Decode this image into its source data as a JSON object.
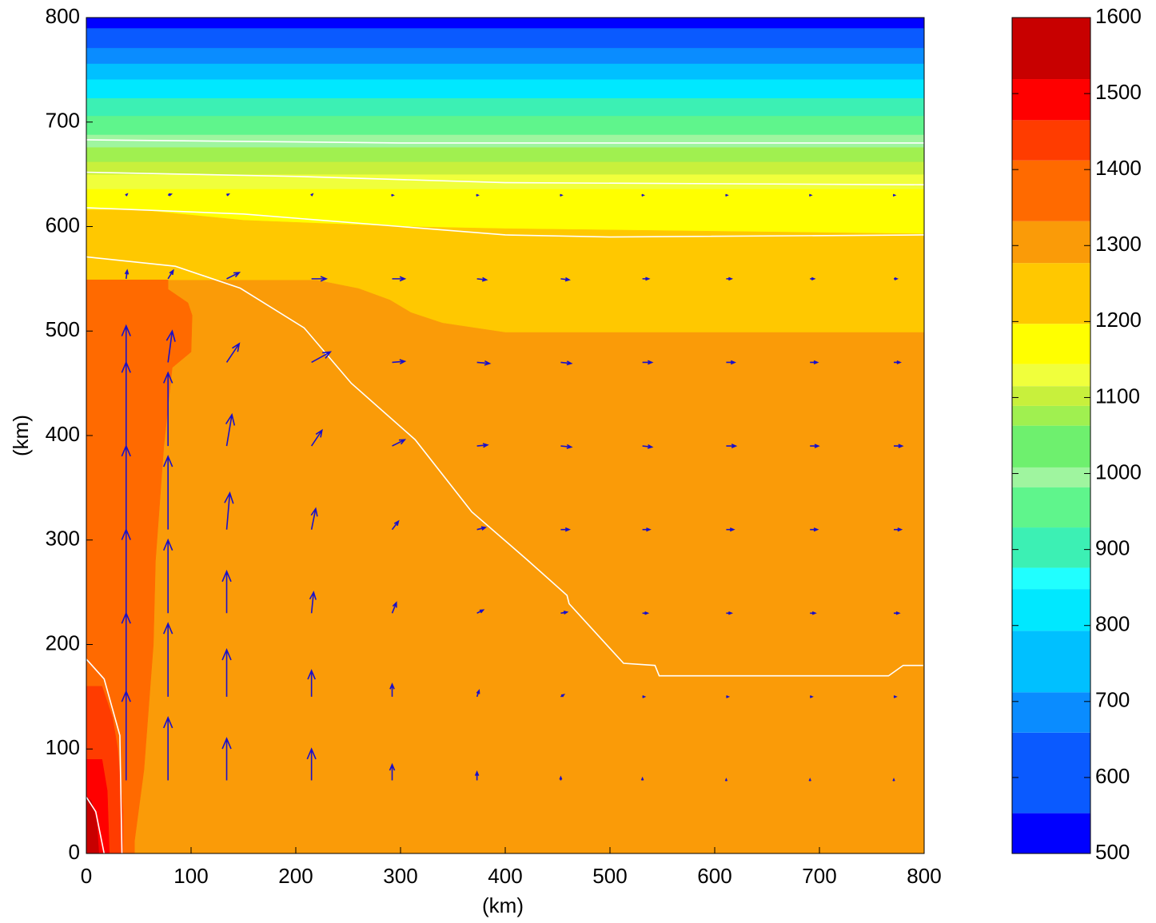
{
  "chart_data": {
    "type": "contourf",
    "xlabel": "(km)",
    "ylabel": "(km)",
    "xlim": [
      0,
      800
    ],
    "ylim": [
      0,
      800
    ],
    "xticks": [
      0,
      100,
      200,
      300,
      400,
      500,
      600,
      700,
      800
    ],
    "yticks": [
      0,
      100,
      200,
      300,
      400,
      500,
      600,
      700,
      800
    ],
    "colorbar": {
      "lim": [
        500,
        1600
      ],
      "ticks": [
        500,
        600,
        700,
        800,
        900,
        1000,
        1100,
        1200,
        1300,
        1400,
        1500,
        1600
      ],
      "levels": [
        500,
        553,
        659,
        712,
        793,
        848,
        876,
        929,
        982,
        1008,
        1063,
        1089,
        1115,
        1144,
        1197,
        1277,
        1332,
        1412,
        1465,
        1519,
        1600
      ],
      "colors": [
        "#0000ff",
        "#0a5aff",
        "#0a8cff",
        "#00c0ff",
        "#00e8ff",
        "#20ffff",
        "#3cf0b4",
        "#5ff58c",
        "#9ff59f",
        "#6ef06e",
        "#a0f050",
        "#c8f03c",
        "#f0ff3c",
        "#ffff00",
        "#ffc800",
        "#fa9b08",
        "#ff6a00",
        "#ff3c00",
        "#ff0000",
        "#c80000"
      ]
    },
    "regions": [
      {
        "band": 15,
        "x": [
          0,
          800,
          800,
          0
        ],
        "y": [
          0,
          0,
          800,
          800
        ]
      },
      {
        "band": 13,
        "x": [
          0,
          800,
          800,
          0
        ],
        "y": [
          593,
          593,
          636,
          636
        ]
      },
      {
        "band": 14,
        "x": [
          0,
          220,
          260,
          290,
          310,
          340,
          400,
          800,
          800,
          400,
          300,
          150,
          50,
          0
        ],
        "y": [
          549,
          549,
          541,
          530,
          518,
          508,
          499,
          499,
          593,
          598,
          600,
          606,
          616,
          616
        ]
      },
      {
        "band": 12,
        "x": [
          0,
          800,
          800,
          0
        ],
        "y": [
          636,
          636,
          650,
          650
        ]
      },
      {
        "band": 11,
        "x": [
          0,
          800,
          800,
          0
        ],
        "y": [
          650,
          650,
          662,
          662
        ]
      },
      {
        "band": 10,
        "x": [
          0,
          800,
          800,
          0
        ],
        "y": [
          662,
          662,
          676,
          676
        ]
      },
      {
        "band": 8,
        "x": [
          0,
          800,
          800,
          0
        ],
        "y": [
          676,
          676,
          688,
          688
        ]
      },
      {
        "band": 7,
        "x": [
          0,
          800,
          800,
          0
        ],
        "y": [
          688,
          688,
          706,
          706
        ]
      },
      {
        "band": 6,
        "x": [
          0,
          800,
          800,
          0
        ],
        "y": [
          706,
          706,
          723,
          723
        ]
      },
      {
        "band": 4,
        "x": [
          0,
          800,
          800,
          0
        ],
        "y": [
          723,
          723,
          741,
          741
        ]
      },
      {
        "band": 3,
        "x": [
          0,
          800,
          800,
          0
        ],
        "y": [
          741,
          741,
          756,
          756
        ]
      },
      {
        "band": 2,
        "x": [
          0,
          800,
          800,
          0
        ],
        "y": [
          756,
          756,
          771,
          771
        ]
      },
      {
        "band": 1,
        "x": [
          0,
          800,
          800,
          0
        ],
        "y": [
          771,
          771,
          790,
          790
        ]
      },
      {
        "band": 0,
        "x": [
          0,
          800,
          800,
          0
        ],
        "y": [
          790,
          790,
          800,
          800
        ]
      },
      {
        "band": 16,
        "x": [
          0,
          46,
          46,
          55,
          64,
          66,
          74,
          82,
          100,
          101,
          97,
          78,
          78,
          0
        ],
        "y": [
          0,
          0,
          12,
          80,
          200,
          280,
          390,
          465,
          480,
          515,
          527,
          540,
          549,
          549
        ]
      },
      {
        "band": 17,
        "x": [
          0,
          35,
          35,
          30,
          25,
          15,
          0
        ],
        "y": [
          0,
          0,
          40,
          100,
          130,
          160,
          160
        ]
      },
      {
        "band": 18,
        "x": [
          0,
          22,
          20,
          15,
          0
        ],
        "y": [
          0,
          0,
          60,
          90,
          90
        ]
      },
      {
        "band": 19,
        "x": [
          0,
          12,
          10,
          5,
          0
        ],
        "y": [
          0,
          0,
          30,
          50,
          55
        ]
      }
    ],
    "contour_lines": [
      {
        "x": [
          0,
          300,
          800
        ],
        "y": [
          683,
          680,
          680
        ]
      },
      {
        "x": [
          0,
          200,
          400,
          800
        ],
        "y": [
          652,
          648,
          642,
          640
        ]
      },
      {
        "x": [
          0,
          150,
          300,
          400,
          500,
          800
        ],
        "y": [
          618,
          612,
          600,
          592,
          590,
          592
        ]
      },
      {
        "x": [
          0,
          85,
          147,
          208,
          253,
          314,
          368,
          421,
          459,
          461,
          513,
          543,
          547,
          766,
          780,
          799
        ],
        "y": [
          571,
          562,
          541,
          503,
          450,
          396,
          327,
          281,
          247,
          239,
          182,
          180,
          170,
          170,
          180,
          180
        ]
      },
      {
        "x": [
          0,
          17,
          32,
          34
        ],
        "y": [
          186,
          167,
          113,
          0
        ]
      },
      {
        "x": [
          0,
          9,
          17
        ],
        "y": [
          54,
          40,
          0
        ]
      }
    ],
    "quiver": {
      "x": [
        38,
        78,
        134,
        215,
        292,
        373,
        453,
        531,
        611,
        691,
        771
      ],
      "y": [
        70,
        150,
        230,
        310,
        390,
        470,
        550,
        630
      ],
      "u": [
        [
          0,
          0,
          0,
          0,
          0,
          0,
          0,
          0,
          0,
          0,
          0
        ],
        [
          0,
          0,
          0,
          0,
          0,
          2,
          3,
          2,
          2,
          2,
          2
        ],
        [
          0,
          0,
          0,
          2,
          4,
          6,
          6,
          5,
          5,
          5,
          5
        ],
        [
          0,
          0,
          3,
          4,
          6,
          8,
          8,
          7,
          7,
          7,
          7
        ],
        [
          0,
          0,
          5,
          10,
          12,
          10,
          10,
          9,
          9,
          8,
          8
        ],
        [
          0,
          4,
          12,
          18,
          12,
          12,
          10,
          9,
          8,
          7,
          6
        ],
        [
          1,
          5,
          12,
          14,
          12,
          9,
          8,
          6,
          5,
          4,
          3
        ],
        [
          1,
          3,
          2,
          1,
          1,
          1,
          1,
          1,
          1,
          1,
          1
        ]
      ],
      "v": [
        [
          85,
          60,
          40,
          30,
          15,
          8,
          3,
          2,
          1,
          1,
          1
        ],
        [
          80,
          70,
          45,
          25,
          12,
          6,
          2,
          0,
          0,
          0,
          0
        ],
        [
          80,
          70,
          40,
          20,
          10,
          3,
          1,
          0,
          0,
          0,
          0
        ],
        [
          80,
          70,
          35,
          20,
          8,
          2,
          0,
          0,
          0,
          0,
          0
        ],
        [
          80,
          70,
          30,
          15,
          6,
          1,
          -1,
          -1,
          0,
          0,
          0
        ],
        [
          35,
          30,
          18,
          10,
          1,
          -1,
          -1,
          0,
          0,
          0,
          0
        ],
        [
          8,
          8,
          6,
          0,
          0,
          -1,
          -1,
          0,
          0,
          0,
          0
        ],
        [
          1,
          1,
          1,
          1,
          0,
          0,
          0,
          0,
          0,
          0,
          0
        ]
      ]
    }
  }
}
